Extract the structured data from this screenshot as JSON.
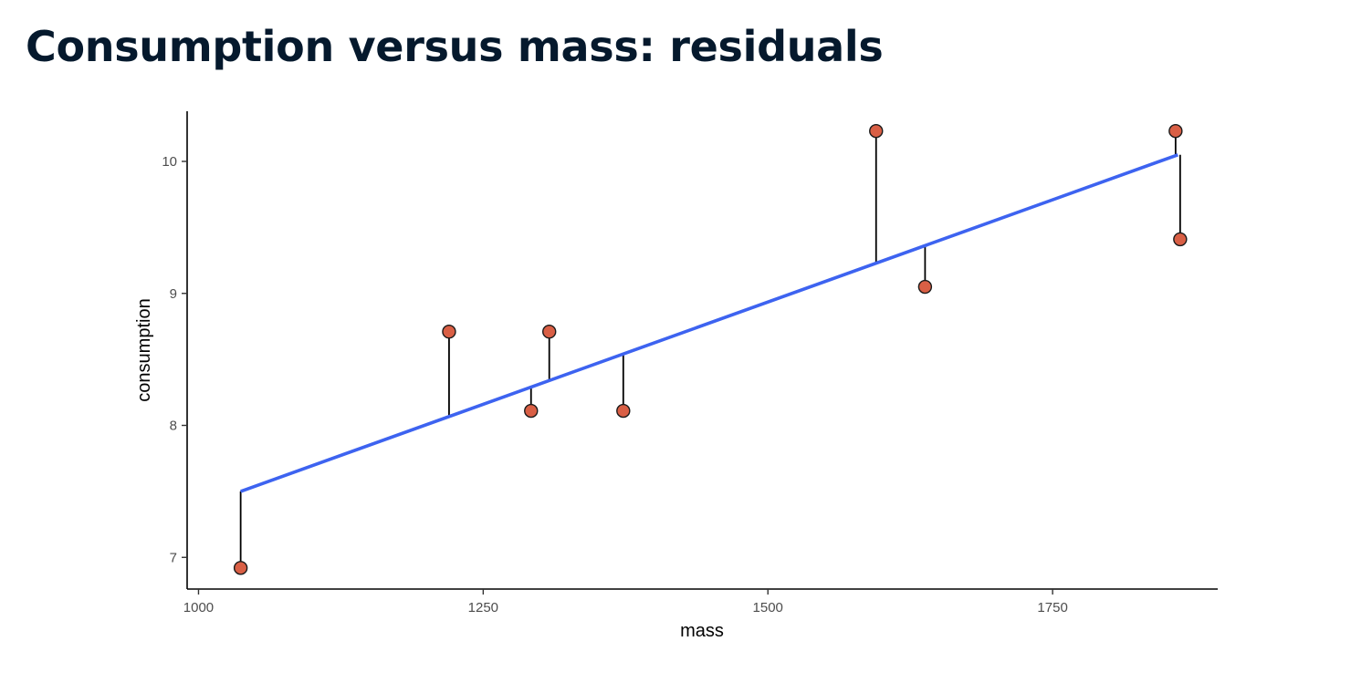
{
  "slide": {
    "title": "Consumption versus mass: residuals"
  },
  "chart_data": {
    "type": "scatter",
    "title": "",
    "xlabel": "mass",
    "ylabel": "consumption",
    "xlim": [
      990,
      1895
    ],
    "ylim": [
      6.76,
      10.38
    ],
    "x_ticks": [
      1000,
      1250,
      1500,
      1750
    ],
    "y_ticks": [
      7,
      8,
      9,
      10
    ],
    "grid": false,
    "legend": "none",
    "regression_line": {
      "from": {
        "x": 1037,
        "y": 7.5
      },
      "to": {
        "x": 1860,
        "y": 10.05
      }
    },
    "points": [
      {
        "x": 1037,
        "y": 6.92,
        "fitted": 7.5
      },
      {
        "x": 1220,
        "y": 8.71,
        "fitted": 8.07
      },
      {
        "x": 1292,
        "y": 8.11,
        "fitted": 8.29
      },
      {
        "x": 1308,
        "y": 8.71,
        "fitted": 8.34
      },
      {
        "x": 1373,
        "y": 8.11,
        "fitted": 8.54
      },
      {
        "x": 1595,
        "y": 10.23,
        "fitted": 9.23
      },
      {
        "x": 1638,
        "y": 9.05,
        "fitted": 9.36
      },
      {
        "x": 1858,
        "y": 10.23,
        "fitted": 10.05
      },
      {
        "x": 1862,
        "y": 9.41,
        "fitted": 10.05
      }
    ],
    "colors": {
      "points_fill": "#d95f45",
      "points_stroke": "#1a1a1a",
      "line": "#3d63f0",
      "residual": "#000000",
      "axis": "#000000"
    }
  }
}
